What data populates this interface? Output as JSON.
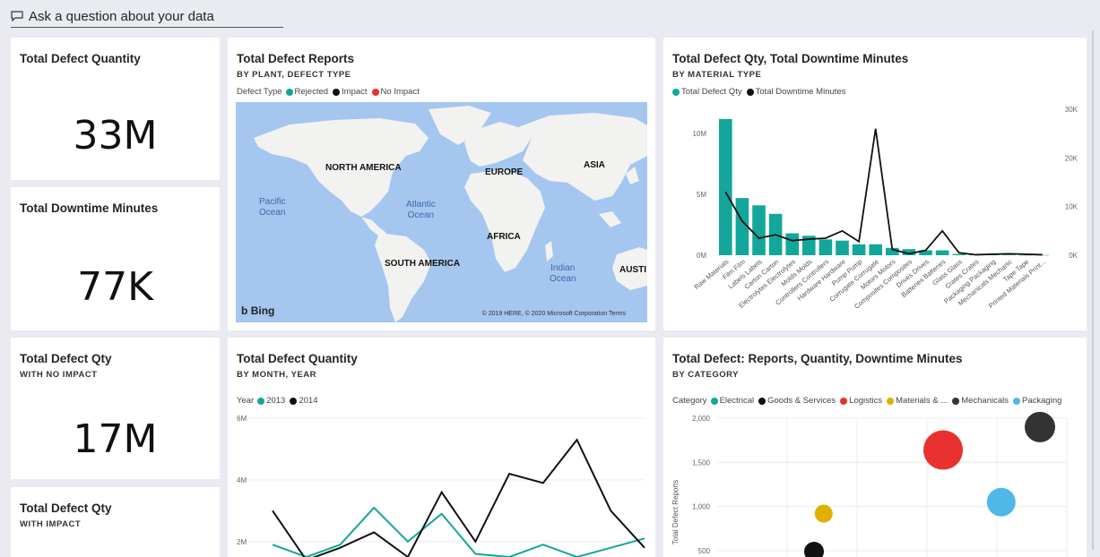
{
  "qa": {
    "label": "Ask a question about your data",
    "icon": "chat-bubble-icon"
  },
  "kpis": [
    {
      "title": "Total Defect Quantity",
      "subtitle": "",
      "value": "33M"
    },
    {
      "title": "Total Downtime Minutes",
      "subtitle": "",
      "value": "77K"
    },
    {
      "title": "Total Defect Qty",
      "subtitle": "WITH NO IMPACT",
      "value": "17M"
    },
    {
      "title": "Total Defect Qty",
      "subtitle": "WITH IMPACT",
      "value": ""
    }
  ],
  "map_tile": {
    "title": "Total Defect Reports",
    "subtitle": "BY PLANT, DEFECT TYPE",
    "legend_title": "Defect Type",
    "legend": [
      {
        "label": "Rejected",
        "color": "#12a79a"
      },
      {
        "label": "Impact",
        "color": "#111111"
      },
      {
        "label": "No Impact",
        "color": "#e8312f"
      }
    ],
    "labels": {
      "na": "NORTH AMERICA",
      "eu": "EUROPE",
      "as": "ASIA",
      "af": "AFRICA",
      "sa": "SOUTH AMERICA",
      "au": "AUSTI"
    },
    "oceans": {
      "pac1": "Pacific",
      "pac2": "Ocean",
      "atl1": "Atlantic",
      "atl2": "Ocean",
      "ind1": "Indian",
      "ind2": "Ocean"
    },
    "bing": "Bing",
    "copyright": "© 2019 HERE, © 2020 Microsoft Corporation  Terms"
  },
  "combo_tile": {
    "title": "Total Defect Qty, Total Downtime Minutes",
    "subtitle": "BY MATERIAL TYPE",
    "legend": [
      {
        "label": "Total Defect Qty",
        "color": "#12a79a"
      },
      {
        "label": "Total Downtime Minutes",
        "color": "#111111"
      }
    ]
  },
  "line_tile": {
    "title": "Total Defect Quantity",
    "subtitle": "BY MONTH, YEAR",
    "legend_title": "Year",
    "legend": [
      {
        "label": "2013",
        "color": "#12a79a"
      },
      {
        "label": "2014",
        "color": "#111111"
      }
    ]
  },
  "scatter_tile": {
    "title": "Total Defect: Reports, Quantity, Downtime Minutes",
    "subtitle": "BY CATEGORY",
    "legend_title": "Category",
    "legend": [
      {
        "label": "Electrical",
        "color": "#12a79a"
      },
      {
        "label": "Goods & Services",
        "color": "#111111"
      },
      {
        "label": "Logistics",
        "color": "#e8312f"
      },
      {
        "label": "Materials & ...",
        "color": "#e0b000"
      },
      {
        "label": "Mechanicals",
        "color": "#333333"
      },
      {
        "label": "Packaging",
        "color": "#4fb8e8"
      }
    ]
  },
  "chart_data": [
    {
      "type": "bar",
      "categories": [
        "Raw Materials",
        "Film Film",
        "Labels Labels",
        "Carton Carton",
        "Electrolytes Electrolytes",
        "Molds Molds",
        "Controllers Controllers",
        "Hardware Hardware",
        "Pump Pump",
        "Corrugate Corrugate",
        "Motors Motors",
        "Composites Composites",
        "Drives Drives",
        "Batteries Batteries",
        "Glass Glass",
        "Crates Crates",
        "Packaging Packaging",
        "Mechanicals Mechanic",
        "Tape Tape",
        "Printed Materials Print..."
      ],
      "series": [
        {
          "name": "Total Defect Qty",
          "axis": "left",
          "values": [
            11.2,
            4.7,
            4.1,
            3.4,
            1.8,
            1.6,
            1.3,
            1.2,
            0.9,
            0.9,
            0.6,
            0.5,
            0.4,
            0.4,
            0.1,
            0.05,
            0.05,
            0.05,
            0.02,
            0.02
          ]
        },
        {
          "name": "Total Downtime Minutes",
          "axis": "right",
          "values": [
            13000,
            7000,
            3500,
            4200,
            3000,
            3300,
            3500,
            5000,
            2800,
            26000,
            1200,
            300,
            1000,
            5000,
            500,
            100,
            200,
            300,
            200,
            100
          ]
        }
      ],
      "left_ticks": [
        "0M",
        "5M",
        "10M"
      ],
      "right_ticks": [
        "0K",
        "10K",
        "20K",
        "30K"
      ],
      "ylim_left": [
        0,
        12
      ],
      "ylim_right": [
        0,
        30000
      ]
    },
    {
      "type": "line",
      "x": [
        1,
        2,
        3,
        4,
        5,
        6,
        7,
        8,
        9,
        10,
        11,
        12
      ],
      "series": [
        {
          "name": "2013",
          "values": [
            1.9,
            1.5,
            1.9,
            3.1,
            2.0,
            2.9,
            1.6,
            1.5,
            1.9,
            1.5,
            1.8,
            2.1
          ]
        },
        {
          "name": "2014",
          "values": [
            3.0,
            1.4,
            1.8,
            2.3,
            1.5,
            3.6,
            2.0,
            4.2,
            3.9,
            5.3,
            3.0,
            1.8
          ]
        }
      ],
      "y_ticks": [
        "2M",
        "4M",
        "6M"
      ],
      "ylim": [
        1.5,
        6
      ]
    },
    {
      "type": "scatter",
      "ylabel": "Total Defect Reports",
      "y_ticks": [
        "500",
        "1,000",
        "1,500",
        "2,000"
      ],
      "ylim": [
        500,
        2000
      ],
      "points": [
        {
          "category": "Materials & ...",
          "x": 0.33,
          "y": 920,
          "size": 10,
          "color": "#e0b000"
        },
        {
          "category": "Goods & Services",
          "x": 0.3,
          "y": 490,
          "size": 11,
          "color": "#111111"
        },
        {
          "category": "Logistics",
          "x": 0.7,
          "y": 1640,
          "size": 22,
          "color": "#e8312f"
        },
        {
          "category": "Packaging",
          "x": 0.88,
          "y": 1050,
          "size": 16,
          "color": "#4fb8e8"
        },
        {
          "category": "Mechanicals",
          "x": 1.0,
          "y": 1900,
          "size": 17,
          "color": "#333333"
        }
      ]
    }
  ]
}
